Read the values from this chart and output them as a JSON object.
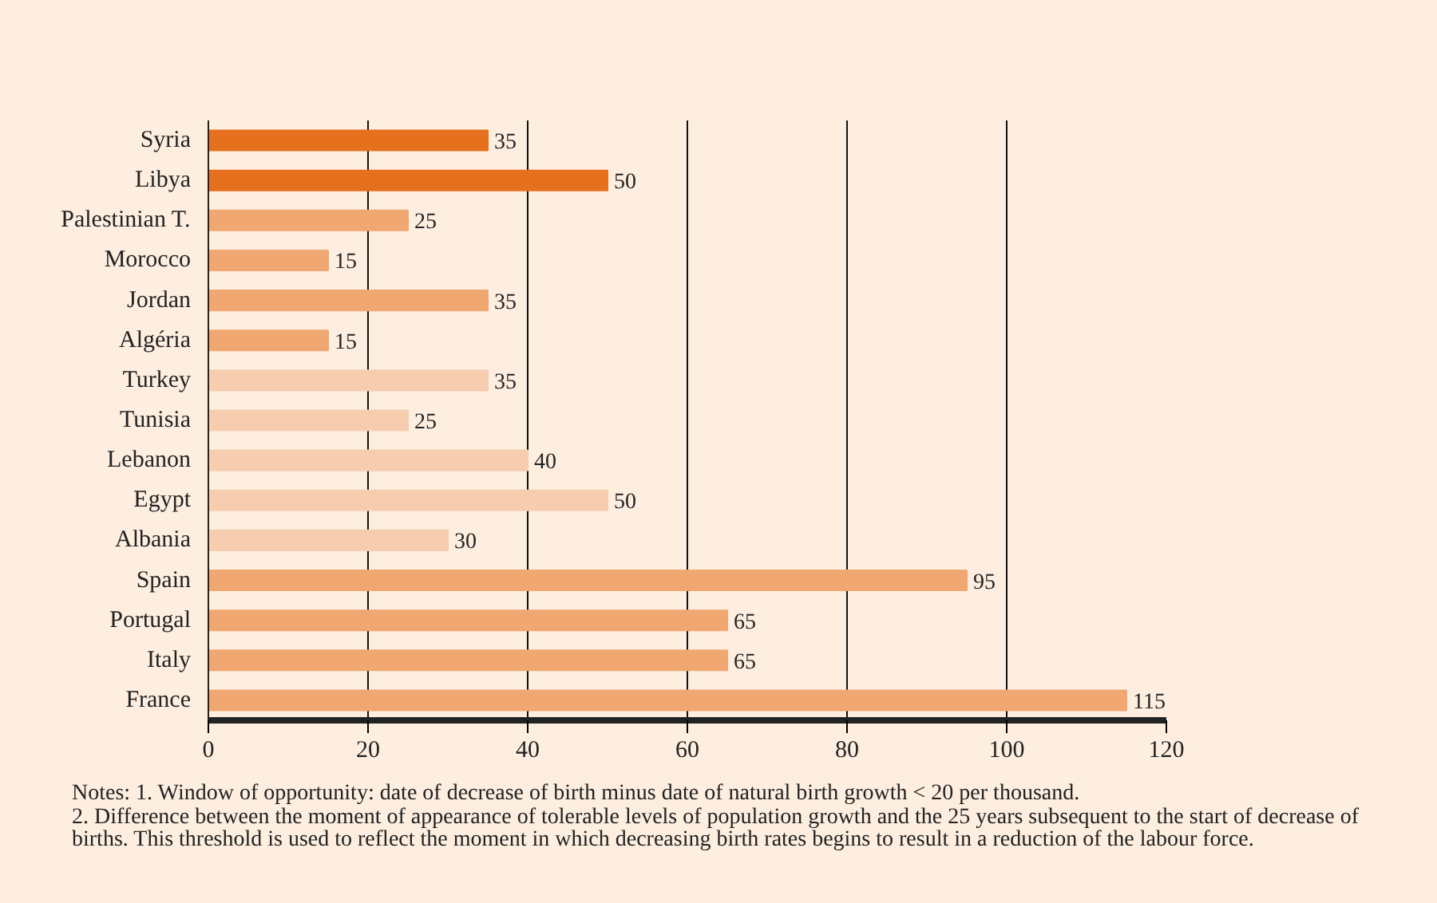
{
  "chart_data": {
    "type": "bar",
    "orientation": "horizontal",
    "categories": [
      "Syria",
      "Libya",
      "Palestinian T.",
      "Morocco",
      "Jordan",
      "Algéria",
      "Turkey",
      "Tunisia",
      "Lebanon",
      "Egypt",
      "Albania",
      "Spain",
      "Portugal",
      "Italy",
      "France"
    ],
    "values": [
      35,
      50,
      25,
      15,
      35,
      15,
      35,
      25,
      40,
      50,
      30,
      95,
      65,
      65,
      115
    ],
    "colors": [
      "#e5701e",
      "#e5701e",
      "#f0a772",
      "#f0a772",
      "#f0a772",
      "#f0a772",
      "#f7cdb0",
      "#f7cdb0",
      "#f7cdb0",
      "#f7cdb0",
      "#f7cdb0",
      "#f0a772",
      "#f0a772",
      "#f0a772",
      "#f0a772"
    ],
    "data_labels": true,
    "xlim": [
      0,
      120
    ],
    "xticks": [
      0,
      20,
      40,
      60,
      80,
      100,
      120
    ],
    "grid": "x",
    "annotations": [
      "Notes: 1. Window of opportunity: date of decrease of birth minus date of natural birth growth < 20 per thousand.",
      "2. Difference between the moment of appearance of tolerable levels of population growth and the 25 years subsequent to the start of decrease of births. This threshold is used to reflect the moment in which decreasing birth rates begins to result in a reduction of the labour force."
    ]
  }
}
